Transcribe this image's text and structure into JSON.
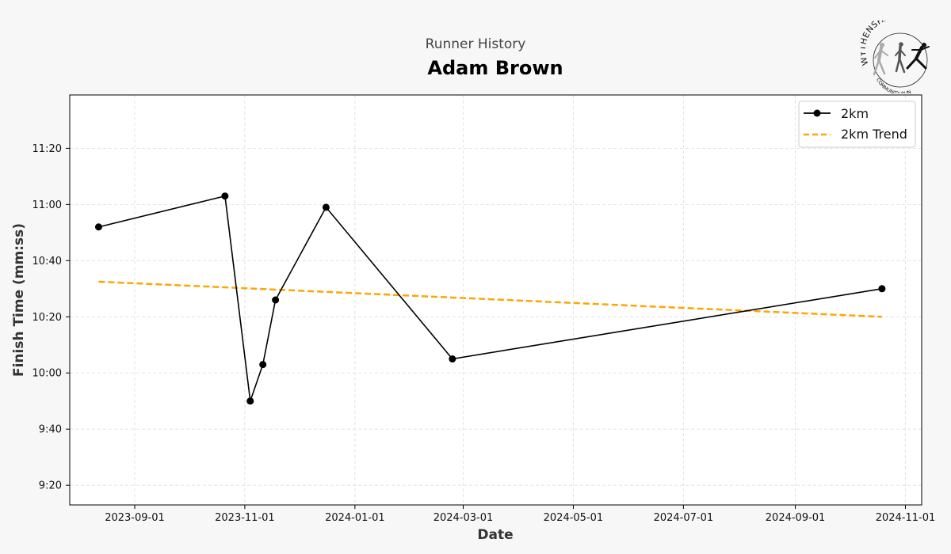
{
  "header": {
    "subtitle": "Runner History",
    "title": "Adam Brown"
  },
  "logo": {
    "text_top": "WYTHENSHAWE",
    "text_bottom": "COMMUNITY RUN",
    "icon": "running-figures-logo"
  },
  "colors": {
    "series": "#000000",
    "trend": "#ffa500",
    "grid": "#dddddd",
    "background": "#f7f7f7",
    "plot_background": "#ffffff"
  },
  "chart_data": {
    "type": "line",
    "xlabel": "Date",
    "ylabel": "Finish Time (mm:ss)",
    "x_is_date": true,
    "xlim": [
      "2023-07-27",
      "2024-11-10"
    ],
    "ylim": [
      "9:13",
      "11:39"
    ],
    "x_ticks": [
      "2023-09-01",
      "2023-11-01",
      "2024-01-01",
      "2024-03-01",
      "2024-05-01",
      "2024-07-01",
      "2024-09-01",
      "2024-11-01"
    ],
    "y_ticks": [
      "9:20",
      "9:40",
      "10:00",
      "10:20",
      "10:40",
      "11:00",
      "11:20"
    ],
    "grid": true,
    "legend_position": "top-right",
    "series": [
      {
        "name": "2km",
        "style": "solid-with-markers",
        "points": [
          {
            "x": "2023-08-12",
            "y": "10:52"
          },
          {
            "x": "2023-10-21",
            "y": "11:03"
          },
          {
            "x": "2023-11-04",
            "y": "9:50"
          },
          {
            "x": "2023-11-11",
            "y": "10:03"
          },
          {
            "x": "2023-11-18",
            "y": "10:26"
          },
          {
            "x": "2023-12-16",
            "y": "10:59"
          },
          {
            "x": "2024-02-24",
            "y": "10:05"
          },
          {
            "x": "2024-10-19",
            "y": "10:30"
          }
        ]
      },
      {
        "name": "2km Trend",
        "style": "dashed",
        "points": [
          {
            "x": "2023-08-12",
            "y": "10:32.5"
          },
          {
            "x": "2024-10-19",
            "y": "10:20"
          }
        ]
      }
    ]
  }
}
